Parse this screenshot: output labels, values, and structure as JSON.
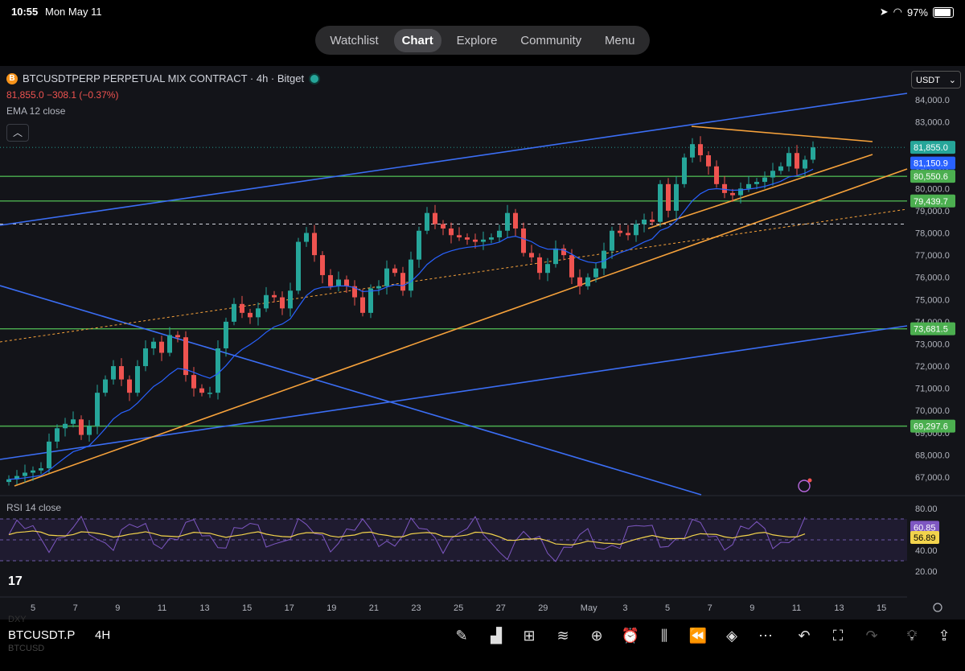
{
  "status_bar": {
    "time": "10:55",
    "date": "Mon May 11",
    "battery": "97%"
  },
  "nav_tabs": [
    {
      "label": "Watchlist",
      "active": false
    },
    {
      "label": "Chart",
      "active": true
    },
    {
      "label": "Explore",
      "active": false
    },
    {
      "label": "Community",
      "active": false
    },
    {
      "label": "Menu",
      "active": false
    }
  ],
  "header": {
    "symbol_title": "BTCUSDTPERP PERPETUAL MIX CONTRACT · 4h · Bitget",
    "price_line": "81,855.0  −308.1 (−0.37%)",
    "indicator": "EMA 12 close",
    "currency": "USDT",
    "coin_glyph": "B"
  },
  "rsi_label": "RSI 14 close",
  "chart_data": {
    "type": "candlestick",
    "y_ticks": [
      "84,000.0",
      "83,000.0",
      "82,000.0",
      "81,000.0",
      "80,000.0",
      "79,000.0",
      "78,000.0",
      "77,000.0",
      "76,000.0",
      "75,000.0",
      "74,000.0",
      "73,000.0",
      "72,000.0",
      "71,000.0",
      "70,000.0",
      "69,000.0",
      "68,000.0",
      "67,000.0"
    ],
    "price_badges": [
      {
        "label": "81,855.0",
        "value": 81855,
        "color": "#26a69a"
      },
      {
        "label": "81,150.9",
        "value": 81150.9,
        "color": "#2962ff"
      },
      {
        "label": "80,550.6",
        "value": 80550.6,
        "color": "#4caf50"
      },
      {
        "label": "79,439.7",
        "value": 79439.7,
        "color": "#4caf50"
      },
      {
        "label": "73,681.5",
        "value": 73681.5,
        "color": "#4caf50"
      },
      {
        "label": "69,297.6",
        "value": 69297.6,
        "color": "#4caf50"
      }
    ],
    "x_ticks": [
      "5",
      "7",
      "9",
      "11",
      "13",
      "15",
      "17",
      "19",
      "21",
      "23",
      "25",
      "27",
      "29",
      "May",
      "3",
      "5",
      "7",
      "9",
      "11",
      "13",
      "15"
    ],
    "rsi_ticks": [
      "80.00",
      "60.00",
      "40.00",
      "20.00"
    ],
    "rsi_badges": [
      {
        "label": "60.85",
        "color": "#7e57c2"
      },
      {
        "label": "56.89",
        "color": "#f2d34c"
      }
    ],
    "close_path": [
      [
        0,
        66900
      ],
      [
        1,
        67050
      ],
      [
        2,
        67200
      ],
      [
        3,
        67300
      ],
      [
        4,
        67400
      ],
      [
        5,
        68600
      ],
      [
        6,
        69200
      ],
      [
        7,
        69400
      ],
      [
        8,
        69600
      ],
      [
        9,
        68900
      ],
      [
        10,
        69300
      ],
      [
        11,
        70800
      ],
      [
        12,
        71400
      ],
      [
        13,
        72000
      ],
      [
        14,
        71400
      ],
      [
        15,
        70800
      ],
      [
        16,
        72000
      ],
      [
        17,
        72800
      ],
      [
        18,
        73100
      ],
      [
        19,
        72600
      ],
      [
        20,
        73400
      ],
      [
        21,
        73300
      ],
      [
        22,
        71600
      ],
      [
        23,
        71000
      ],
      [
        24,
        70800
      ],
      [
        25,
        70800
      ],
      [
        26,
        72800
      ],
      [
        27,
        74000
      ],
      [
        28,
        74800
      ],
      [
        29,
        74400
      ],
      [
        30,
        74200
      ],
      [
        31,
        74600
      ],
      [
        32,
        75200
      ],
      [
        33,
        75100
      ],
      [
        34,
        74600
      ],
      [
        35,
        75400
      ],
      [
        36,
        77600
      ],
      [
        37,
        78000
      ],
      [
        38,
        77000
      ],
      [
        39,
        76100
      ],
      [
        40,
        75600
      ],
      [
        41,
        75900
      ],
      [
        42,
        75600
      ],
      [
        43,
        75100
      ],
      [
        44,
        74400
      ],
      [
        45,
        75500
      ],
      [
        46,
        75600
      ],
      [
        47,
        76400
      ],
      [
        48,
        76200
      ],
      [
        49,
        75400
      ],
      [
        50,
        76800
      ],
      [
        51,
        78100
      ],
      [
        52,
        78900
      ],
      [
        53,
        78400
      ],
      [
        54,
        78200
      ],
      [
        55,
        77900
      ],
      [
        56,
        77800
      ],
      [
        57,
        77700
      ],
      [
        58,
        77600
      ],
      [
        59,
        77700
      ],
      [
        60,
        77800
      ],
      [
        61,
        78100
      ],
      [
        62,
        78900
      ],
      [
        63,
        78200
      ],
      [
        64,
        77100
      ],
      [
        65,
        76900
      ],
      [
        66,
        76200
      ],
      [
        67,
        76600
      ],
      [
        68,
        77300
      ],
      [
        69,
        77000
      ],
      [
        70,
        76000
      ],
      [
        71,
        75600
      ],
      [
        72,
        76000
      ],
      [
        73,
        76400
      ],
      [
        74,
        77200
      ],
      [
        75,
        78100
      ],
      [
        76,
        78000
      ],
      [
        77,
        77900
      ],
      [
        78,
        78400
      ],
      [
        79,
        78600
      ],
      [
        80,
        78500
      ],
      [
        81,
        80200
      ],
      [
        82,
        79000
      ],
      [
        83,
        80200
      ],
      [
        84,
        81400
      ],
      [
        85,
        82000
      ],
      [
        86,
        81500
      ],
      [
        87,
        81000
      ],
      [
        88,
        80200
      ],
      [
        89,
        79800
      ],
      [
        90,
        79700
      ],
      [
        91,
        80000
      ],
      [
        92,
        80200
      ],
      [
        93,
        80300
      ],
      [
        94,
        80500
      ],
      [
        95,
        80800
      ],
      [
        96,
        81000
      ],
      [
        97,
        81600
      ],
      [
        98,
        80900
      ],
      [
        99,
        81300
      ],
      [
        100,
        81855
      ]
    ]
  },
  "toolbar": {
    "symbol": "BTCUSDT.P",
    "timeframe": "4H",
    "faint_top": "DXY",
    "faint_bottom": "BTCUSD"
  }
}
